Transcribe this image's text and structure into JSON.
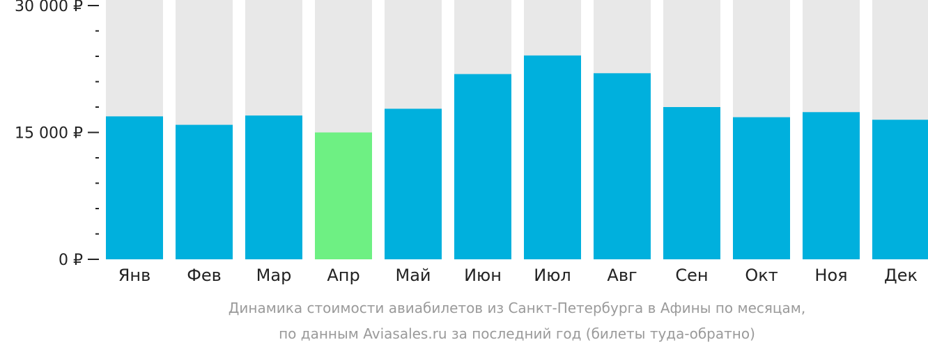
{
  "chart_data": {
    "type": "bar",
    "categories": [
      "Янв",
      "Фев",
      "Мар",
      "Апр",
      "Май",
      "Июн",
      "Июл",
      "Авг",
      "Сен",
      "Окт",
      "Ноя",
      "Дек"
    ],
    "values": [
      16900,
      15900,
      17000,
      15000,
      17800,
      21900,
      24100,
      22000,
      18000,
      16800,
      17400,
      16500
    ],
    "highlight_index": 3,
    "ylim": [
      0,
      30000
    ],
    "y_ticks": [
      {
        "value": 0,
        "label": "0 ₽"
      },
      {
        "value": 15000,
        "label": "15 000 ₽"
      },
      {
        "value": 30000,
        "label": "30 000 ₽"
      }
    ],
    "minor_tick_step": 3000,
    "colors": {
      "bar": "#00b0dd",
      "highlight": "#6ef083",
      "track": "#e8e8e8",
      "axis": "#222222"
    },
    "caption": [
      "Динамика стоимости авиабилетов из Санкт-Петербурга в Афины по месяцам,",
      "по данным Aviasales.ru за последний год (билеты туда-обратно)"
    ]
  }
}
